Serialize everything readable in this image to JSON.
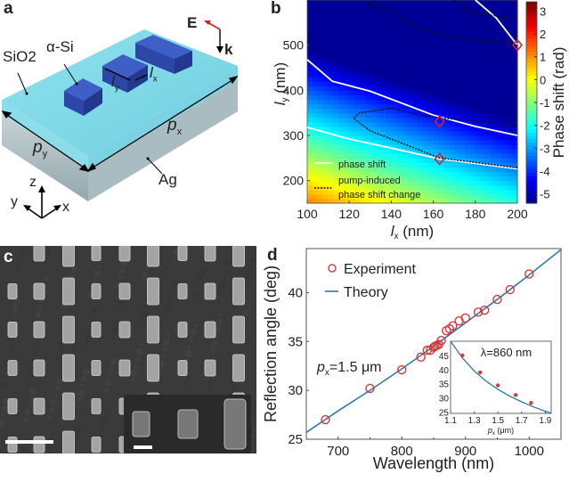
{
  "panel_a": {
    "label": "a",
    "materials": {
      "top_layer": "SiO2",
      "pillar": "α-Si",
      "substrate": "Ag"
    },
    "dims": {
      "period_x": "p",
      "period_x_sub": "x",
      "period_y": "p",
      "period_y_sub": "y",
      "length_x": "l",
      "length_x_sub": "x",
      "length_y": "l",
      "length_y_sub": "y"
    },
    "field": {
      "e_label": "E",
      "k_label": "k"
    },
    "axes": {
      "z": "z",
      "y": "y",
      "x": "x"
    },
    "colors": {
      "pillar": "#2f4fb8",
      "sio2": "#7fd8e6",
      "ag": "#9fb3b8",
      "e_arrow": "#d62020"
    }
  },
  "panel_b": {
    "label": "b"
  },
  "panel_c": {
    "label": "c",
    "colors": {
      "background": "#3b3b3b",
      "feature": "#a9a9a9"
    }
  },
  "panel_d": {
    "label": "d"
  },
  "chart_data": [
    {
      "type": "heatmap",
      "panel": "b",
      "xlabel": "l",
      "xlabel_sub": "x",
      "xlabel_unit": "(nm)",
      "ylabel": "l",
      "ylabel_sub": "y",
      "ylabel_unit": "(nm)",
      "xlim": [
        100,
        200
      ],
      "ylim": [
        150,
        600
      ],
      "xticks": [
        100,
        120,
        140,
        160,
        180,
        200
      ],
      "yticks": [
        200,
        300,
        400,
        500
      ],
      "colorbar": {
        "label": "Phase shift (rad)",
        "range": [
          -5.4,
          3.4
        ],
        "ticks": [
          3,
          2,
          1,
          0,
          -1,
          -2,
          -3,
          -4,
          -5
        ]
      },
      "legend": [
        {
          "label": "phase shift",
          "style": "solid-white"
        },
        {
          "label": "pump-induced",
          "label2": "phase shift change",
          "style": "dotted-black"
        }
      ],
      "legend_position": "bottom-left",
      "phase_shift_contours": [
        {
          "points": [
            [
              100,
              468
            ],
            [
              112,
              420
            ],
            [
              130,
              398
            ],
            [
              160,
              345
            ],
            [
              180,
              320
            ],
            [
              200,
              300
            ]
          ]
        },
        {
          "points": [
            [
              100,
              318
            ],
            [
              120,
              292
            ],
            [
              140,
              272
            ],
            [
              163,
              248
            ],
            [
              180,
              238
            ],
            [
              200,
              226
            ]
          ]
        },
        {
          "points": [
            [
              180,
              600
            ],
            [
              190,
              560
            ],
            [
              200,
              500
            ]
          ]
        }
      ],
      "pump_change_contours": [
        {
          "points": [
            [
              200,
              322
            ],
            [
              180,
              332
            ],
            [
              165,
              338
            ],
            [
              150,
              348
            ],
            [
              148,
              352
            ],
            [
              140,
              360
            ],
            [
              125,
              350
            ],
            [
              122,
              338
            ],
            [
              130,
              310
            ],
            [
              145,
              283
            ],
            [
              163,
              250
            ],
            [
              180,
              240
            ],
            [
              200,
              228
            ]
          ]
        },
        {
          "points": [
            [
              133,
              600
            ],
            [
              128,
              590
            ],
            [
              140,
              575
            ],
            [
              145,
              560
            ],
            [
              150,
              545
            ],
            [
              165,
              520
            ],
            [
              185,
              510
            ],
            [
              200,
              500
            ]
          ]
        },
        {
          "points": [
            [
              170,
              600
            ],
            [
              180,
              570
            ],
            [
              200,
              560
            ]
          ]
        }
      ],
      "markers": [
        {
          "lx": 163,
          "ly": 248
        },
        {
          "lx": 163,
          "ly": 331
        },
        {
          "lx": 200,
          "ly": 500
        }
      ]
    },
    {
      "type": "scatter",
      "panel": "d",
      "title": "",
      "xlabel": "Wavelength (nm)",
      "ylabel": "Reflection angle (deg)",
      "xlim": [
        650,
        1050
      ],
      "ylim": [
        25,
        44.5
      ],
      "xticks": [
        700,
        800,
        900,
        1000
      ],
      "yticks": [
        25,
        30,
        35,
        40
      ],
      "annotation": {
        "text": "p",
        "sub": "x",
        "rest": "=1.5 μm"
      },
      "legend": [
        "Experiment",
        "Theory"
      ],
      "legend_position": "top-left",
      "series": [
        {
          "name": "Experiment",
          "style": "open-circle",
          "color": "#d9373b",
          "x": [
            680,
            750,
            800,
            830,
            840,
            845,
            850,
            852,
            855,
            858,
            862,
            870,
            875,
            880,
            890,
            900,
            920,
            930,
            950,
            970,
            1000
          ],
          "y": [
            27.0,
            30.2,
            32.1,
            33.4,
            34.1,
            34.1,
            34.4,
            34.5,
            34.6,
            34.7,
            35.1,
            36.1,
            36.3,
            36.6,
            37.1,
            37.4,
            38.0,
            38.2,
            39.3,
            40.3,
            41.9
          ]
        },
        {
          "name": "Theory",
          "style": "line",
          "color": "#2b7bb0",
          "x": [
            650,
            700,
            750,
            800,
            850,
            900,
            950,
            1000,
            1050
          ],
          "y": [
            25.7,
            27.9,
            30.0,
            32.2,
            34.5,
            36.9,
            39.3,
            41.8,
            44.4
          ]
        }
      ]
    },
    {
      "type": "line",
      "panel": "d-inset",
      "title": "λ=860 nm",
      "xlabel": "p",
      "xlabel_sub": "x",
      "xlabel_unit": "(μm)",
      "xlim": [
        1.1,
        1.95
      ],
      "ylim": [
        24.5,
        50
      ],
      "xticks": [
        1.1,
        1.3,
        1.5,
        1.7,
        1.9
      ],
      "yticks": [
        25,
        30,
        35,
        40,
        45
      ],
      "series": [
        {
          "name": "Theory",
          "color": "#2b7bb0",
          "x": [
            1.1,
            1.2,
            1.3,
            1.4,
            1.5,
            1.6,
            1.7,
            1.8,
            1.9,
            1.95
          ],
          "y": [
            50.0,
            44.1,
            39.5,
            35.9,
            33.0,
            30.6,
            28.6,
            26.8,
            25.3,
            24.6
          ]
        },
        {
          "name": "Experiment",
          "style": "filled-dot",
          "color": "#d9373b",
          "x": [
            1.2,
            1.35,
            1.5,
            1.65,
            1.78
          ],
          "y": [
            45.0,
            39.0,
            34.4,
            31.0,
            28.2
          ]
        }
      ]
    }
  ]
}
